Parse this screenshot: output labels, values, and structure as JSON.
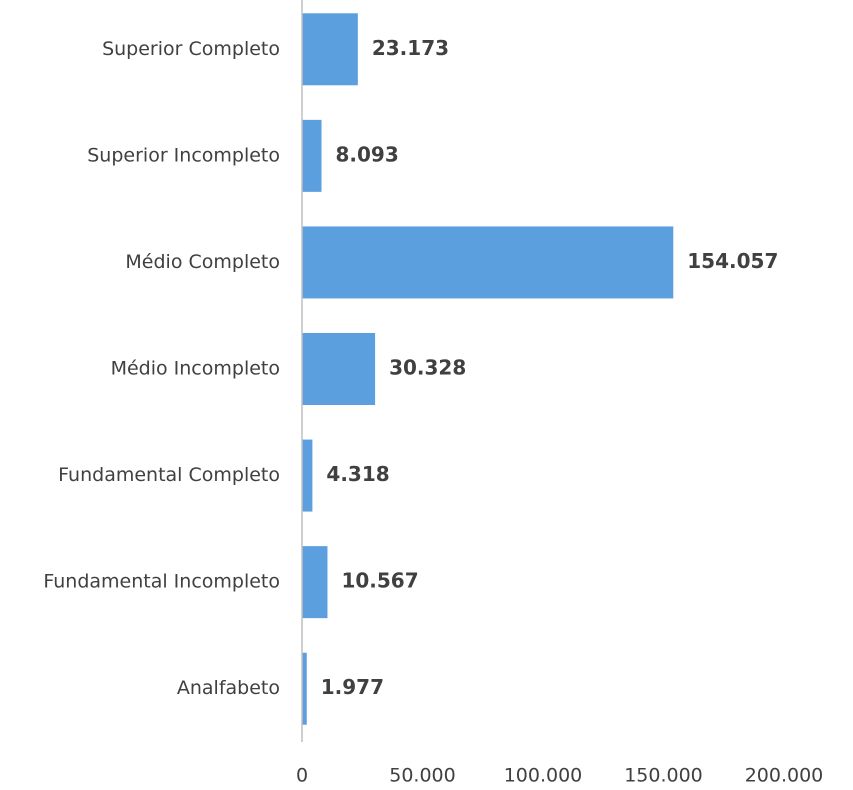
{
  "chart_data": {
    "type": "hbar",
    "categories": [
      "Superior Completo",
      "Superior Incompleto",
      "Médio Completo",
      "Médio Incompleto",
      "Fundamental Completo",
      "Fundamental Incompleto",
      "Analfabeto"
    ],
    "values": [
      23173,
      8093,
      154057,
      30328,
      4318,
      10567,
      1977
    ],
    "value_labels": [
      "23.173",
      "8.093",
      "154.057",
      "30.328",
      "4.318",
      "10.567",
      "1.977"
    ],
    "color": "#5b9fdf",
    "xlim": [
      0,
      200000
    ],
    "xticks": [
      0,
      {
        "value": 50000,
        "label": "50.000"
      },
      {
        "value": 100000,
        "label": "100.000"
      },
      {
        "value": 150000,
        "label": "150.000"
      },
      {
        "value": 200000,
        "label": "200.000"
      }
    ],
    "grid": false
  }
}
